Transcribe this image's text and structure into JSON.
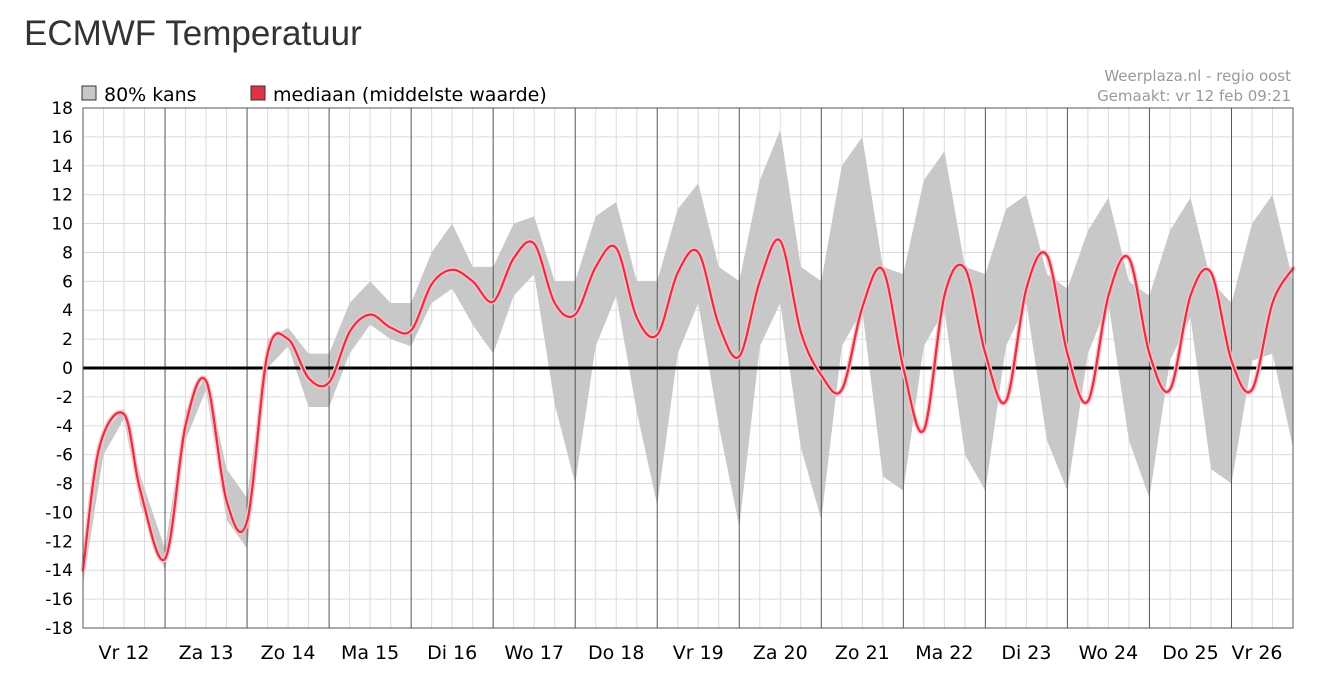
{
  "header": {
    "title": "ECMWF Temperatuur"
  },
  "credit": {
    "source": "Weerplaza.nl - regio oost",
    "made": "Gemaakt: vr 12 feb 09:21"
  },
  "colors": {
    "band": "#c8c8c8",
    "median": "#dd3344",
    "median_halo": "#ffc0c8",
    "zero_line": "#000000",
    "grid_minor": "#dcdcdc",
    "grid_major": "#555555"
  },
  "chart_data": {
    "type": "area",
    "x_unit": "days since Vr 12 00:00",
    "xlim": [
      0,
      14.75
    ],
    "ylim": [
      -18,
      18
    ],
    "y_ticks": [
      18,
      16,
      14,
      12,
      10,
      8,
      6,
      4,
      2,
      0,
      -2,
      -4,
      -6,
      -8,
      -10,
      -12,
      -14,
      -16,
      -18
    ],
    "grid": true,
    "legend_position": "top-left",
    "categories": [
      "Vr 12",
      "Za 13",
      "Zo 14",
      "Ma 15",
      "Di 16",
      "Wo 17",
      "Do 18",
      "Vr 19",
      "Za 20",
      "Zo 21",
      "Ma 22",
      "Di 23",
      "Wo 24",
      "Do 25",
      "Vr 26"
    ],
    "series": [
      {
        "name": "80% kans",
        "kind": "band",
        "x": [
          0,
          0.25,
          0.5,
          0.7,
          1,
          1.25,
          1.5,
          1.75,
          2,
          2.25,
          2.5,
          2.75,
          3,
          3.25,
          3.5,
          3.75,
          4,
          4.25,
          4.5,
          4.75,
          5,
          5.25,
          5.5,
          5.75,
          6,
          6.25,
          6.5,
          6.75,
          7,
          7.25,
          7.5,
          7.75,
          8,
          8.25,
          8.5,
          8.75,
          9,
          9.25,
          9.5,
          9.75,
          10,
          10.25,
          10.5,
          10.75,
          11,
          11.25,
          11.5,
          11.75,
          12,
          12.25,
          12.5,
          12.75,
          13,
          13.25,
          13.5,
          13.75,
          14,
          14.25,
          14.5,
          14.75
        ],
        "low": [
          -15,
          -6,
          -3.5,
          -9.5,
          -14,
          -5,
          -1.5,
          -10.5,
          -12.5,
          0,
          1.5,
          -2.7,
          -2.7,
          1,
          3,
          2,
          1.5,
          4.5,
          5.5,
          3,
          1,
          5,
          6.5,
          -2.5,
          -8,
          1.5,
          5,
          -3,
          -9.5,
          1,
          4.5,
          -4,
          -11,
          1.5,
          4.5,
          -5.5,
          -10.5,
          1.5,
          4,
          -7.5,
          -8.5,
          1.5,
          4,
          -6,
          -8.5,
          1.5,
          4.5,
          -5,
          -8.5,
          1,
          4.5,
          -5,
          -9,
          0.5,
          3.5,
          -7,
          -8,
          0.5,
          1,
          -5.5
        ],
        "high": [
          -13,
          -4.5,
          -2.8,
          -7.5,
          -12.5,
          -3,
          -0.5,
          -7,
          -9,
          2,
          2.8,
          1,
          1,
          4.5,
          6,
          4.5,
          4.5,
          8,
          10,
          7,
          7,
          10,
          10.5,
          6,
          6,
          10.5,
          11.5,
          6,
          6,
          11,
          12.8,
          7,
          6,
          13,
          16.5,
          7,
          6,
          14,
          16,
          7,
          6.5,
          13,
          15,
          7,
          6.5,
          11,
          12,
          6.5,
          5.5,
          9.5,
          11.8,
          6,
          5,
          9.5,
          11.8,
          6,
          4.5,
          10,
          12,
          6
        ]
      },
      {
        "name": "mediaan (middelste waarde)",
        "kind": "line",
        "x": [
          0,
          0.2,
          0.5,
          0.7,
          1,
          1.25,
          1.5,
          1.75,
          2,
          2.25,
          2.5,
          2.75,
          3,
          3.25,
          3.5,
          3.75,
          4,
          4.25,
          4.5,
          4.75,
          5,
          5.25,
          5.5,
          5.75,
          6,
          6.25,
          6.5,
          6.75,
          7,
          7.25,
          7.5,
          7.75,
          8,
          8.25,
          8.5,
          8.75,
          9,
          9.25,
          9.5,
          9.75,
          10,
          10.25,
          10.5,
          10.75,
          11,
          11.25,
          11.5,
          11.75,
          12,
          12.25,
          12.5,
          12.75,
          13,
          13.25,
          13.5,
          13.75,
          14,
          14.25,
          14.5,
          14.75
        ],
        "values": [
          -14,
          -5.5,
          -3.2,
          -8.5,
          -13.2,
          -4,
          -0.9,
          -9.2,
          -10.6,
          1,
          2,
          -0.7,
          -1,
          2.5,
          3.7,
          2.8,
          2.6,
          5.8,
          6.8,
          6,
          4.6,
          7.6,
          8.6,
          4.5,
          3.7,
          7,
          8.3,
          3.5,
          2.3,
          6.6,
          8,
          3,
          0.8,
          6,
          8.8,
          2.5,
          -0.5,
          -1.5,
          4.2,
          6.8,
          0,
          -4.3,
          5,
          6.9,
          1,
          -2.3,
          5.5,
          7.8,
          1,
          -2.3,
          5,
          7.6,
          1,
          -1.5,
          5,
          6.6,
          0.5,
          -1.5,
          4.5,
          6.9
        ]
      }
    ]
  }
}
